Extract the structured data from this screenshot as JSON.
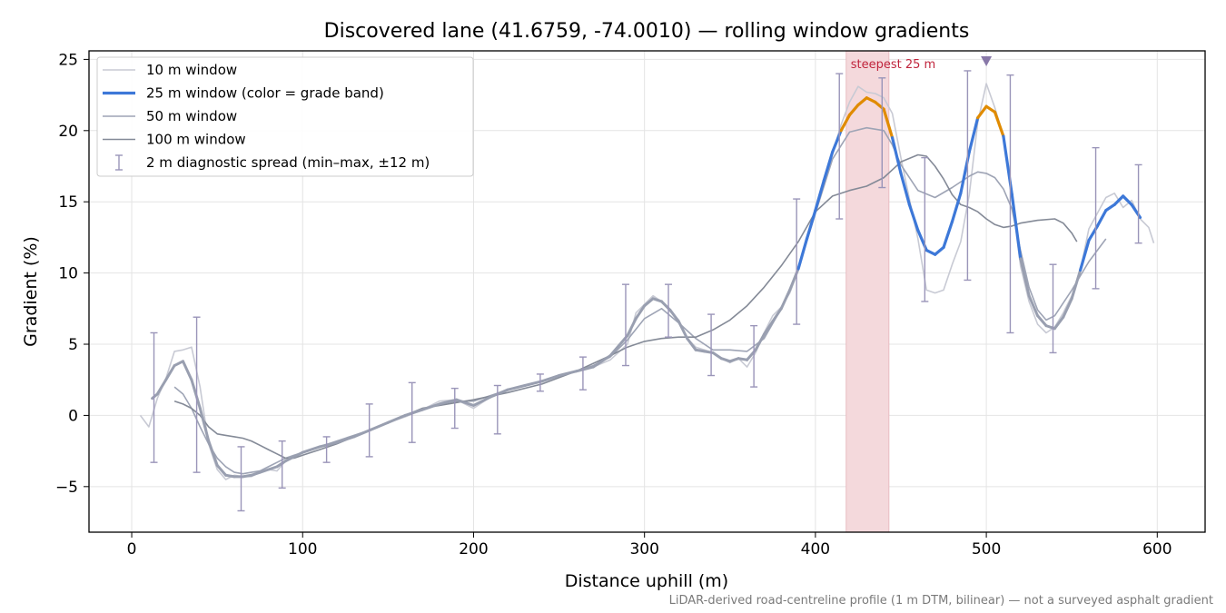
{
  "chart_data": {
    "type": "line",
    "title": "Discovered lane (41.6759, -74.0010) — rolling window gradients",
    "xlabel": "Distance uphill (m)",
    "ylabel": "Gradient (%)",
    "xlim": [
      -25,
      628
    ],
    "ylim": [
      -8.2,
      25.6
    ],
    "xticks": [
      0,
      100,
      200,
      300,
      400,
      500,
      600
    ],
    "yticks": [
      -5,
      0,
      5,
      10,
      15,
      20,
      25
    ],
    "grid": true,
    "legend_position": "upper-left",
    "footnote": "LiDAR-derived road-centreline profile (1 m DTM, bilinear) — not a surveyed asphalt gradient",
    "highlight_band": {
      "label": "steepest 25 m",
      "x_start": 418,
      "x_end": 443,
      "color": "#f4d9dc"
    },
    "peak_marker": {
      "x": 500,
      "y": 24.9,
      "color": "#8878a8"
    },
    "grade_band_colors": {
      "normal": "#999fb0",
      "10-20%": "#3d78d8",
      "over 20%": "#e08b00"
    },
    "series": [
      {
        "name": "10 m window",
        "color": "#c8cad4",
        "x": [
          5,
          10,
          15,
          20,
          25,
          30,
          35,
          40,
          45,
          50,
          55,
          60,
          65,
          70,
          75,
          80,
          85,
          90,
          95,
          100,
          110,
          120,
          130,
          140,
          150,
          160,
          170,
          180,
          190,
          200,
          210,
          220,
          230,
          240,
          250,
          260,
          270,
          280,
          290,
          295,
          300,
          305,
          310,
          315,
          320,
          325,
          330,
          335,
          340,
          345,
          350,
          355,
          360,
          365,
          370,
          375,
          380,
          385,
          390,
          395,
          400,
          405,
          410,
          415,
          420,
          425,
          430,
          435,
          440,
          445,
          450,
          455,
          460,
          465,
          470,
          475,
          480,
          485,
          490,
          495,
          500,
          505,
          510,
          515,
          520,
          525,
          530,
          535,
          540,
          545,
          550,
          555,
          560,
          565,
          570,
          575,
          580,
          585,
          590,
          595,
          598
        ],
        "y": [
          0,
          -0.8,
          1.2,
          2.6,
          4.5,
          4.6,
          4.8,
          2.0,
          -2.0,
          -3.8,
          -4.5,
          -4.2,
          -4.3,
          -4.3,
          -4.0,
          -3.8,
          -3.9,
          -3.2,
          -2.9,
          -2.6,
          -2.2,
          -1.9,
          -1.5,
          -1.0,
          -0.5,
          -0.1,
          0.4,
          1.0,
          1.1,
          0.5,
          1.3,
          1.8,
          2.1,
          2.4,
          2.8,
          3.1,
          3.4,
          3.9,
          5.0,
          7.2,
          7.8,
          8.4,
          8.0,
          7.3,
          6.7,
          5.4,
          4.8,
          4.6,
          4.4,
          4.0,
          3.7,
          4.0,
          3.4,
          4.4,
          5.8,
          7.0,
          7.6,
          8.6,
          10.2,
          12.5,
          14.3,
          16.2,
          18.4,
          20.4,
          22.0,
          23.1,
          22.7,
          22.6,
          22.3,
          21.2,
          18.1,
          15.2,
          12.4,
          8.8,
          8.6,
          8.8,
          10.6,
          12.2,
          15.5,
          20.6,
          23.3,
          21.6,
          19.6,
          15.2,
          10.5,
          8.0,
          6.4,
          5.8,
          6.2,
          7.2,
          8.4,
          10.2,
          13.1,
          14.2,
          15.3,
          15.6,
          14.6,
          15.1,
          13.8,
          13.2,
          12.1
        ]
      },
      {
        "name": "25 m window (color = grade band)",
        "color": "#3d78d8",
        "x": [
          12,
          15,
          20,
          25,
          30,
          35,
          40,
          45,
          50,
          55,
          60,
          65,
          70,
          75,
          80,
          85,
          90,
          95,
          100,
          110,
          120,
          130,
          140,
          150,
          160,
          170,
          180,
          190,
          200,
          210,
          220,
          230,
          240,
          250,
          260,
          270,
          280,
          290,
          295,
          300,
          305,
          310,
          315,
          320,
          325,
          330,
          335,
          340,
          345,
          350,
          355,
          360,
          365,
          370,
          375,
          380,
          385,
          390,
          395,
          400,
          405,
          410,
          415,
          420,
          425,
          430,
          435,
          440,
          445,
          450,
          455,
          460,
          465,
          470,
          475,
          480,
          485,
          490,
          495,
          500,
          505,
          510,
          515,
          520,
          525,
          530,
          535,
          540,
          545,
          550,
          555,
          560,
          565,
          570,
          575,
          580,
          585,
          590
        ],
        "y": [
          1.2,
          1.5,
          2.5,
          3.5,
          3.8,
          2.5,
          0.5,
          -1.8,
          -3.5,
          -4.2,
          -4.3,
          -4.3,
          -4.2,
          -4.0,
          -3.8,
          -3.6,
          -3.2,
          -2.9,
          -2.6,
          -2.2,
          -1.9,
          -1.5,
          -1.0,
          -0.5,
          0.0,
          0.4,
          0.8,
          1.1,
          0.7,
          1.3,
          1.8,
          2.1,
          2.4,
          2.8,
          3.1,
          3.4,
          4.2,
          5.6,
          6.8,
          7.7,
          8.2,
          8.0,
          7.4,
          6.6,
          5.4,
          4.6,
          4.5,
          4.4,
          4.0,
          3.8,
          4.0,
          3.9,
          4.6,
          5.7,
          6.6,
          7.5,
          8.8,
          10.3,
          12.4,
          14.4,
          16.5,
          18.5,
          20.0,
          21.1,
          21.8,
          22.3,
          22.0,
          21.5,
          19.5,
          17.0,
          14.8,
          13.0,
          11.6,
          11.3,
          11.8,
          13.6,
          15.6,
          18.5,
          20.9,
          21.7,
          21.3,
          19.6,
          15.5,
          11.0,
          8.4,
          7.0,
          6.3,
          6.1,
          6.9,
          8.2,
          10.2,
          12.3,
          13.3,
          14.4,
          14.8,
          15.4,
          14.8,
          13.9
        ]
      },
      {
        "name": "50 m window",
        "color": "#9ea4b5",
        "x": [
          25,
          30,
          35,
          40,
          45,
          50,
          55,
          60,
          65,
          70,
          75,
          80,
          85,
          90,
          95,
          100,
          110,
          120,
          130,
          140,
          150,
          160,
          170,
          180,
          190,
          200,
          210,
          220,
          230,
          240,
          250,
          260,
          270,
          280,
          290,
          300,
          310,
          320,
          330,
          340,
          350,
          360,
          370,
          380,
          390,
          400,
          410,
          420,
          430,
          440,
          445,
          450,
          460,
          470,
          480,
          490,
          495,
          500,
          505,
          510,
          515,
          520,
          525,
          530,
          535,
          540,
          550,
          560,
          570
        ],
        "y": [
          2.0,
          1.5,
          0.5,
          -0.8,
          -2.0,
          -3.0,
          -3.6,
          -4.0,
          -4.1,
          -4.0,
          -3.9,
          -3.6,
          -3.3,
          -3.0,
          -2.8,
          -2.6,
          -2.2,
          -1.8,
          -1.4,
          -1.0,
          -0.5,
          0.0,
          0.4,
          0.8,
          1.0,
          1.0,
          1.4,
          1.8,
          2.1,
          2.4,
          2.8,
          3.1,
          3.5,
          4.1,
          5.3,
          6.8,
          7.5,
          6.5,
          5.4,
          4.6,
          4.6,
          4.5,
          5.4,
          7.5,
          10.3,
          14.2,
          18.0,
          19.9,
          20.2,
          20.0,
          19.0,
          17.6,
          15.8,
          15.3,
          16.0,
          16.8,
          17.1,
          17.0,
          16.7,
          15.9,
          14.5,
          11.6,
          9.0,
          7.4,
          6.7,
          7.0,
          8.8,
          10.8,
          12.4
        ]
      },
      {
        "name": "100 m window",
        "color": "#848a97",
        "x": [
          25,
          30,
          35,
          40,
          45,
          50,
          55,
          60,
          65,
          70,
          75,
          80,
          85,
          90,
          95,
          100,
          110,
          120,
          130,
          140,
          150,
          160,
          170,
          180,
          190,
          200,
          220,
          240,
          260,
          280,
          290,
          300,
          310,
          320,
          330,
          340,
          350,
          360,
          370,
          380,
          390,
          400,
          410,
          420,
          430,
          440,
          450,
          460,
          465,
          470,
          475,
          480,
          485,
          490,
          495,
          500,
          505,
          510,
          515,
          520,
          530,
          540,
          545,
          550,
          553
        ],
        "y": [
          1.0,
          0.8,
          0.5,
          0.0,
          -0.8,
          -1.3,
          -1.4,
          -1.5,
          -1.6,
          -1.8,
          -2.1,
          -2.4,
          -2.7,
          -3.0,
          -3.0,
          -2.8,
          -2.4,
          -2.0,
          -1.5,
          -1.0,
          -0.5,
          0.0,
          0.5,
          0.7,
          0.9,
          1.1,
          1.6,
          2.2,
          3.1,
          4.2,
          4.8,
          5.2,
          5.4,
          5.5,
          5.5,
          6.0,
          6.7,
          7.7,
          9.0,
          10.5,
          12.2,
          14.3,
          15.4,
          15.8,
          16.1,
          16.7,
          17.8,
          18.3,
          18.2,
          17.5,
          16.6,
          15.5,
          14.8,
          14.6,
          14.3,
          13.8,
          13.4,
          13.2,
          13.3,
          13.5,
          13.7,
          13.8,
          13.5,
          12.8,
          12.2
        ]
      }
    ],
    "error_bars": {
      "name": "2 m diagnostic spread (min–max, ±12 m)",
      "color": "#9a95b9",
      "x": [
        13,
        38,
        64,
        88,
        114,
        139,
        164,
        189,
        214,
        239,
        264,
        289,
        314,
        339,
        364,
        389,
        414,
        439,
        464,
        489,
        514,
        539,
        564,
        589
      ],
      "low": [
        -3.3,
        -4.0,
        -6.7,
        -5.1,
        -3.3,
        -2.9,
        -1.9,
        -0.9,
        -1.3,
        1.7,
        1.8,
        3.5,
        5.5,
        2.8,
        2.0,
        6.4,
        13.8,
        16.0,
        8.0,
        9.5,
        5.8,
        4.4,
        8.9,
        12.1
      ],
      "high": [
        5.8,
        6.9,
        -2.2,
        -1.8,
        -1.5,
        0.8,
        2.3,
        1.9,
        2.1,
        2.9,
        4.1,
        9.2,
        9.2,
        7.1,
        6.3,
        15.2,
        24.0,
        23.7,
        18.1,
        24.2,
        23.9,
        10.6,
        18.8,
        17.6
      ]
    }
  }
}
